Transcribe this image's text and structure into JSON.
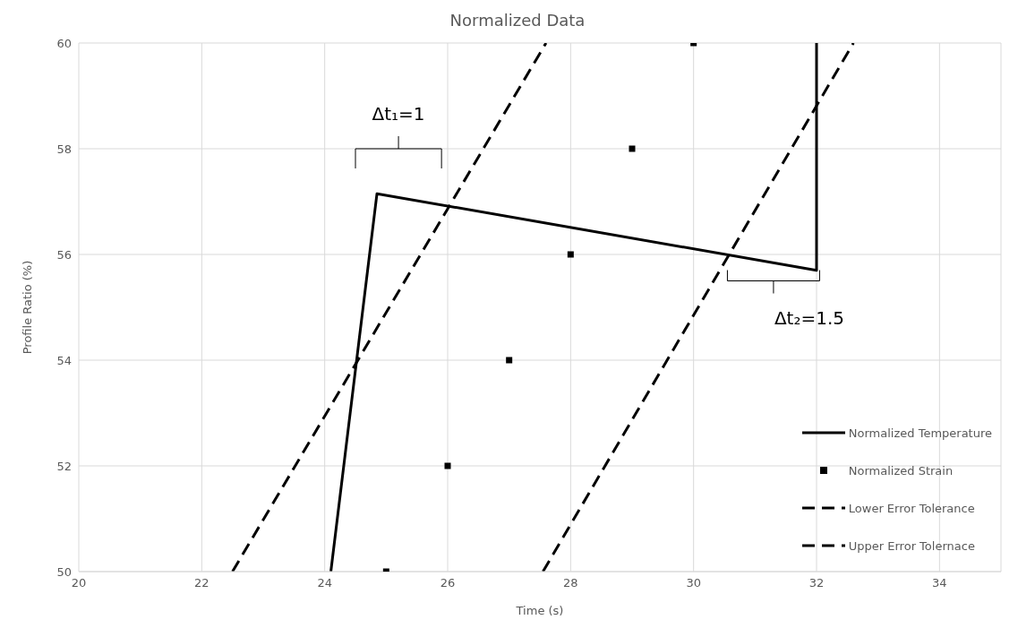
{
  "chart_data": {
    "type": "line",
    "title": "Normalized Data",
    "xlabel": "Time (s)",
    "ylabel": "Profile Ratio (%)",
    "xlim": [
      20,
      35
    ],
    "xticks": [
      20,
      22,
      24,
      26,
      28,
      30,
      32,
      34
    ],
    "ylim": [
      50,
      60
    ],
    "yticks": [
      50,
      52,
      54,
      56,
      58,
      60
    ],
    "grid": true,
    "legend": "bottom right",
    "series": [
      {
        "name": "Normalized Temperature",
        "color": "#000000",
        "line_style": "solid",
        "marker": "none",
        "x": [
          24.1,
          24.85,
          32,
          32
        ],
        "values": [
          50,
          57.15,
          55.7,
          60
        ]
      },
      {
        "name": "Normalized Strain",
        "type": "scatter",
        "color": "#000000",
        "marker": "square",
        "x": [
          25,
          26,
          27,
          28,
          29,
          30
        ],
        "values": [
          50,
          52,
          54,
          56,
          58,
          60
        ]
      },
      {
        "name": "Lower Error Tolerance",
        "color": "#000000",
        "line_style": "dashed",
        "marker": "none",
        "x": [
          22.5,
          27.6
        ],
        "values": [
          50,
          60
        ]
      },
      {
        "name": "Upper Error Tolernace",
        "color": "#000000",
        "line_style": "dashed",
        "marker": "none",
        "x": [
          27.55,
          32.6
        ],
        "values": [
          50,
          60
        ]
      }
    ],
    "annotations": [
      "Δt₁=1",
      "Δt₂=1.5"
    ]
  }
}
